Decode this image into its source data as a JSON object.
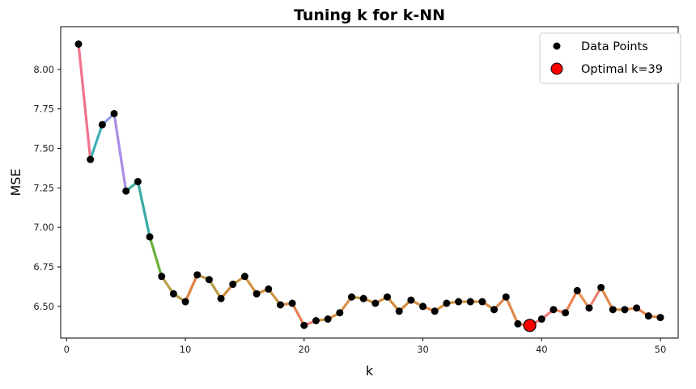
{
  "chart_data": {
    "type": "line",
    "title": "Tuning k for k-NN",
    "xlabel": "k",
    "ylabel": "MSE",
    "xlim": [
      -0.5,
      51.5
    ],
    "ylim": [
      6.3,
      8.27
    ],
    "xticks": [
      0,
      10,
      20,
      30,
      40,
      50
    ],
    "yticks": [
      6.5,
      6.75,
      7.0,
      7.25,
      7.5,
      7.75,
      8.0
    ],
    "ytick_labels": [
      "6.50",
      "6.75",
      "7.00",
      "7.25",
      "7.50",
      "7.75",
      "8.00"
    ],
    "grid": false,
    "legend_position": "top-right",
    "series": [
      {
        "name": "Data Points",
        "marker_color": "#000000",
        "x": [
          1,
          2,
          3,
          4,
          5,
          6,
          7,
          8,
          9,
          10,
          11,
          12,
          13,
          14,
          15,
          16,
          17,
          18,
          19,
          20,
          21,
          22,
          23,
          24,
          25,
          26,
          27,
          28,
          29,
          30,
          31,
          32,
          33,
          34,
          35,
          36,
          37,
          38,
          39,
          40,
          41,
          42,
          43,
          44,
          45,
          46,
          47,
          48,
          49,
          50
        ],
        "y": [
          8.16,
          7.43,
          7.65,
          7.72,
          7.23,
          7.29,
          6.94,
          6.69,
          6.58,
          6.53,
          6.7,
          6.67,
          6.55,
          6.64,
          6.69,
          6.58,
          6.61,
          6.51,
          6.52,
          6.38,
          6.41,
          6.42,
          6.46,
          6.56,
          6.55,
          6.52,
          6.56,
          6.47,
          6.54,
          6.5,
          6.47,
          6.52,
          6.53,
          6.53,
          6.53,
          6.48,
          6.56,
          6.39,
          6.38,
          6.42,
          6.48,
          6.46,
          6.6,
          6.49,
          6.62,
          6.48,
          6.48,
          6.49,
          6.44,
          6.43
        ]
      }
    ],
    "optimal": {
      "label": "Optimal k=39",
      "k": 39,
      "mse": 6.38,
      "color": "#ff0000"
    },
    "segment_colors": [
      "#f0728c",
      "#3daeba",
      "#8f9ae6",
      "#a98de8",
      "#3aafa0",
      "#3aa9a8",
      "#6aaf3a",
      "#b6a046",
      "#b89a44",
      "#e08040",
      "#b89a44",
      "#b89a44",
      "#d18a40",
      "#c89640",
      "#d49040",
      "#d39040",
      "#c89640",
      "#dd8a45",
      "#e88050",
      "#f08070",
      "#c89640",
      "#d49040",
      "#d8904a",
      "#b89a44",
      "#d39040",
      "#d39040",
      "#d39040",
      "#d18a40",
      "#d39040",
      "#e0884a",
      "#d39040",
      "#d39040",
      "#d39040",
      "#d39040",
      "#d39040",
      "#e0884a",
      "#e08848",
      "#e4854e",
      "#f07a70",
      "#f07878",
      "#f08a60",
      "#f08050",
      "#e89050",
      "#f08070",
      "#e08848",
      "#d39040",
      "#e08848",
      "#e4854e",
      "#e08848"
    ],
    "legend": [
      {
        "label": "Data Points"
      },
      {
        "label": "Optimal k=39"
      }
    ]
  }
}
